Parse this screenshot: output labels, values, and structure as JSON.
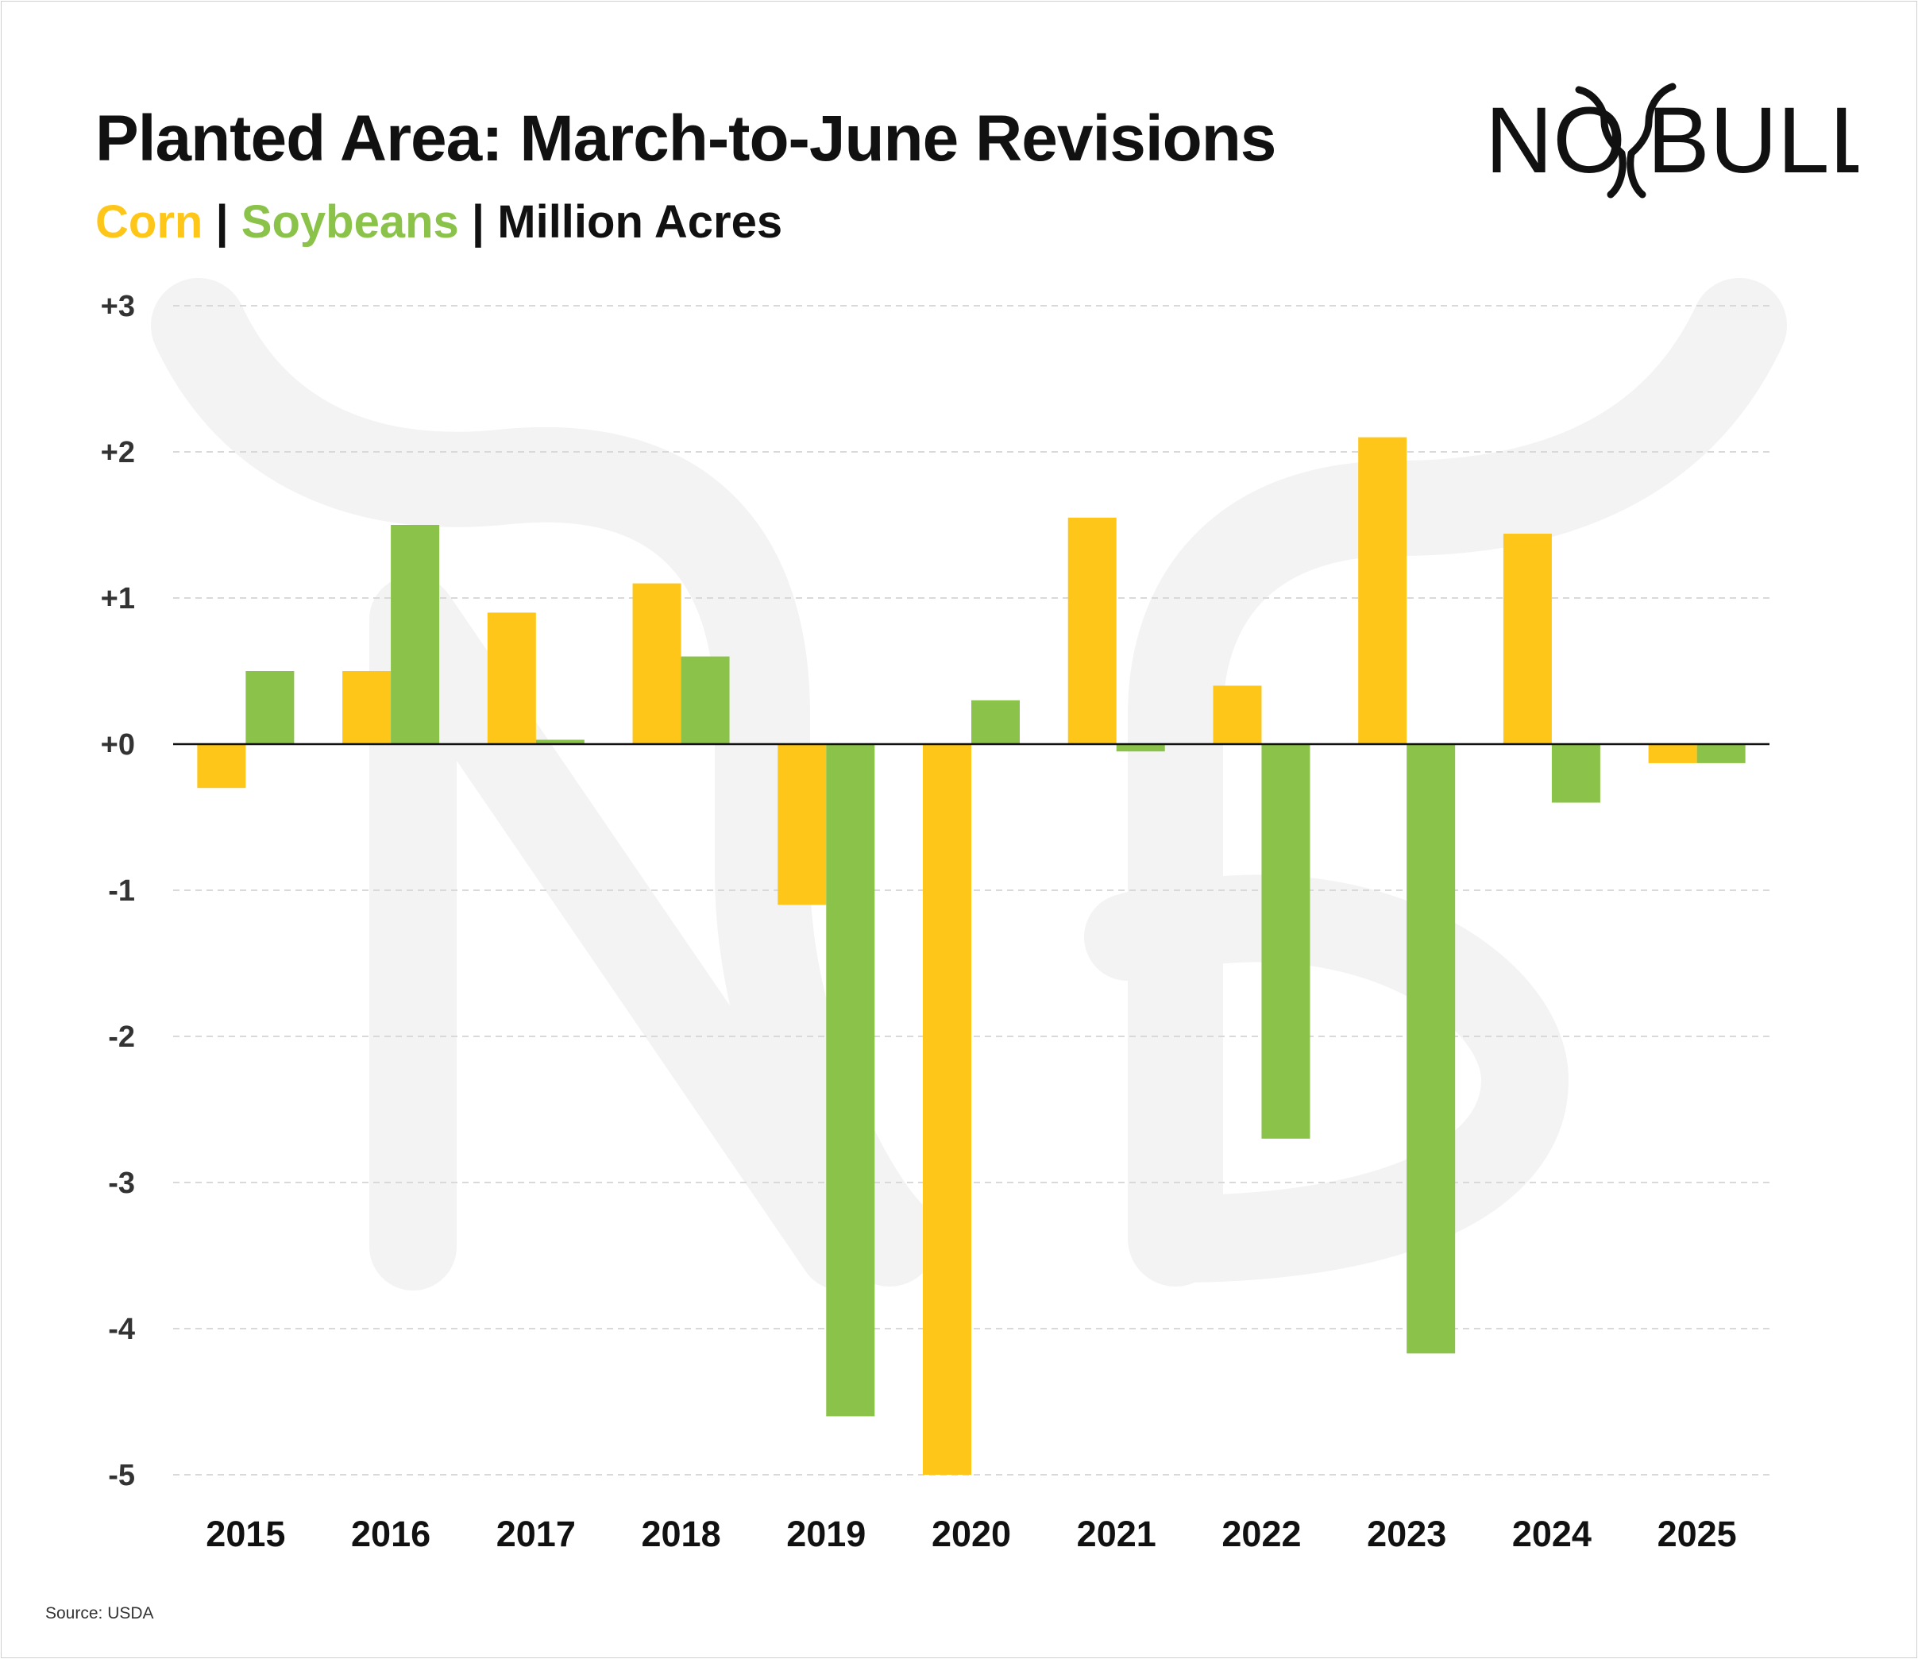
{
  "header": {
    "title": "Planted Area: March-to-June Revisions",
    "subtitle_corn": "Corn",
    "subtitle_sep1": " | ",
    "subtitle_soy": "Soybeans",
    "subtitle_sep2": " | ",
    "subtitle_unit": "Million Acres"
  },
  "logo": {
    "text_left": "NO",
    "text_right": "BULL",
    "icon": "bull-horns-logo"
  },
  "source": "Source: USDA",
  "colors": {
    "corn": "#FFC61A",
    "soybeans": "#8BC34A",
    "zero_line": "#111111",
    "grid": "#d9d9d9",
    "watermark": "#f3f3f3"
  },
  "chart_data": {
    "type": "bar",
    "title": "Planted Area: March-to-June Revisions",
    "subtitle": "Corn | Soybeans | Million Acres",
    "xlabel": "",
    "ylabel": "Million Acres",
    "ylim": [
      -5,
      3
    ],
    "y_ticks": [
      3,
      2,
      1,
      0,
      -1,
      -2,
      -3,
      -4,
      -5
    ],
    "y_tick_labels": [
      "+3",
      "+2",
      "+1",
      "+0",
      "-1",
      "-2",
      "-3",
      "-4",
      "-5"
    ],
    "grid": true,
    "categories": [
      "2015",
      "2016",
      "2017",
      "2018",
      "2019",
      "2020",
      "2021",
      "2022",
      "2023",
      "2024",
      "2025"
    ],
    "series": [
      {
        "name": "Corn",
        "color": "#FFC61A",
        "values": [
          -0.3,
          0.5,
          0.9,
          1.1,
          -1.1,
          -5.0,
          1.55,
          0.4,
          2.1,
          1.44,
          -0.13
        ]
      },
      {
        "name": "Soybeans",
        "color": "#8BC34A",
        "values": [
          0.5,
          1.5,
          0.03,
          0.6,
          -4.6,
          0.3,
          -0.05,
          -2.7,
          -4.17,
          -0.4,
          -0.13
        ]
      }
    ]
  }
}
